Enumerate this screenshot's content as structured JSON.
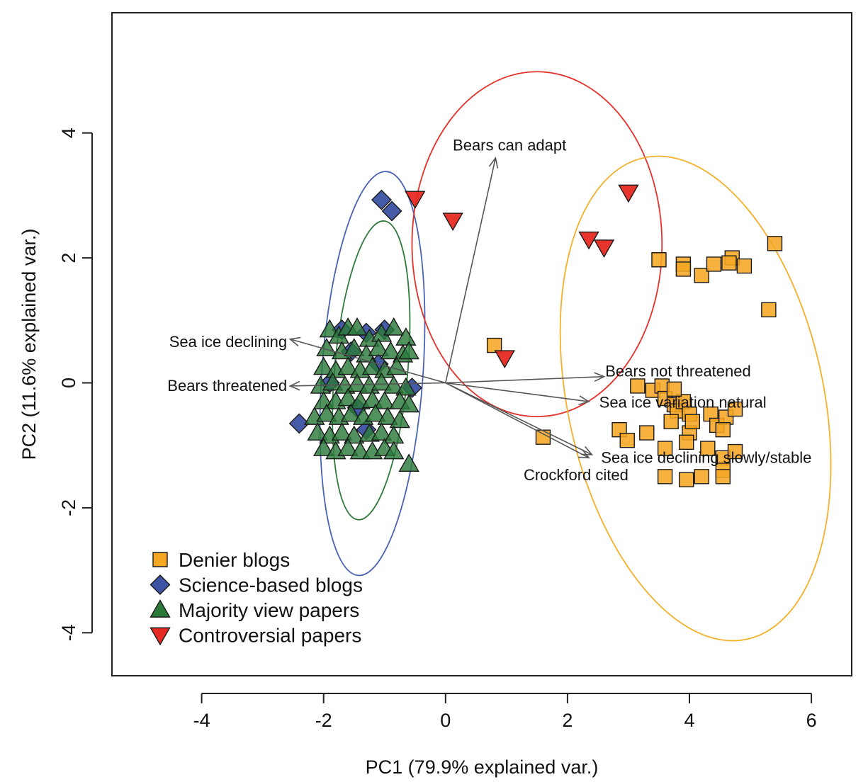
{
  "chart_data": {
    "type": "scatter",
    "subtype": "pca-biplot",
    "title": "",
    "xlabel": "PC1 (79.9% explained var.)",
    "ylabel": "PC2 (11.6% explained var.)",
    "xlim": [
      -5.4,
      6.6
    ],
    "ylim": [
      -4.7,
      5.9
    ],
    "xticks": [
      -4,
      -2,
      0,
      2,
      4,
      6
    ],
    "yticks": [
      -4,
      -2,
      0,
      2,
      4
    ],
    "legend_position": "bottom-left",
    "series": [
      {
        "name": "Denier blogs",
        "marker": "square",
        "color": "#f5a623",
        "points": [
          [
            0.8,
            0.6
          ],
          [
            1.6,
            -0.87
          ],
          [
            3.5,
            1.97
          ],
          [
            3.9,
            1.9
          ],
          [
            3.9,
            1.82
          ],
          [
            4.2,
            1.72
          ],
          [
            4.4,
            1.9
          ],
          [
            4.7,
            2.0
          ],
          [
            4.65,
            1.92
          ],
          [
            4.9,
            1.87
          ],
          [
            5.4,
            2.23
          ],
          [
            5.3,
            1.17
          ],
          [
            2.85,
            -0.75
          ],
          [
            2.98,
            -0.92
          ],
          [
            3.3,
            -0.8
          ],
          [
            3.15,
            -0.05
          ],
          [
            3.4,
            -0.12
          ],
          [
            3.55,
            -0.05
          ],
          [
            3.6,
            -0.25
          ],
          [
            3.75,
            -0.35
          ],
          [
            3.8,
            -0.45
          ],
          [
            3.7,
            -0.62
          ],
          [
            3.9,
            -0.3
          ],
          [
            4.0,
            -0.5
          ],
          [
            4.0,
            -0.8
          ],
          [
            4.05,
            -0.62
          ],
          [
            4.35,
            -0.5
          ],
          [
            4.45,
            -0.68
          ],
          [
            4.6,
            -0.55
          ],
          [
            4.75,
            -0.42
          ],
          [
            4.55,
            -0.75
          ],
          [
            3.95,
            -0.95
          ],
          [
            3.6,
            -1.05
          ],
          [
            4.3,
            -1.05
          ],
          [
            4.55,
            -1.2
          ],
          [
            4.75,
            -1.1
          ],
          [
            4.55,
            -1.4
          ],
          [
            4.55,
            -1.5
          ],
          [
            3.6,
            -1.5
          ],
          [
            3.95,
            -1.55
          ],
          [
            4.2,
            -1.5
          ],
          [
            3.75,
            -0.1
          ]
        ]
      },
      {
        "name": "Science-based blogs",
        "marker": "diamond",
        "color": "#3c52a3",
        "points": [
          [
            -1.05,
            2.93
          ],
          [
            -0.88,
            2.75
          ],
          [
            -0.55,
            -0.08
          ],
          [
            -2.4,
            -0.65
          ],
          [
            -1.7,
            0.85
          ],
          [
            -1.3,
            0.8
          ],
          [
            -1.55,
            0.5
          ],
          [
            -1.3,
            -0.75
          ],
          [
            -1.45,
            -0.4
          ],
          [
            -1.1,
            0.3
          ],
          [
            -1.9,
            0.0
          ],
          [
            -1.0,
            0.85
          ]
        ]
      },
      {
        "name": "Majority view papers",
        "marker": "triangle-up",
        "color": "#2b7a3a",
        "points": [
          [
            -1.9,
            0.85
          ],
          [
            -1.75,
            0.75
          ],
          [
            -1.6,
            0.88
          ],
          [
            -1.45,
            0.88
          ],
          [
            -1.25,
            0.7
          ],
          [
            -1.05,
            0.78
          ],
          [
            -0.85,
            0.88
          ],
          [
            -0.65,
            0.72
          ],
          [
            -1.95,
            0.55
          ],
          [
            -1.7,
            0.5
          ],
          [
            -1.5,
            0.55
          ],
          [
            -1.3,
            0.45
          ],
          [
            -1.1,
            0.55
          ],
          [
            -0.9,
            0.5
          ],
          [
            -0.7,
            0.45
          ],
          [
            -0.6,
            0.5
          ],
          [
            -2.0,
            0.25
          ],
          [
            -1.8,
            0.2
          ],
          [
            -1.6,
            0.25
          ],
          [
            -1.4,
            0.2
          ],
          [
            -1.2,
            0.25
          ],
          [
            -1.0,
            0.2
          ],
          [
            -0.8,
            0.25
          ],
          [
            -2.05,
            -0.05
          ],
          [
            -1.85,
            0.0
          ],
          [
            -1.65,
            -0.05
          ],
          [
            -1.45,
            -0.02
          ],
          [
            -1.25,
            -0.05
          ],
          [
            -1.05,
            0.0
          ],
          [
            -0.85,
            -0.05
          ],
          [
            -0.65,
            -0.08
          ],
          [
            -2.0,
            -0.3
          ],
          [
            -1.8,
            -0.3
          ],
          [
            -1.6,
            -0.25
          ],
          [
            -1.4,
            -0.3
          ],
          [
            -1.2,
            -0.28
          ],
          [
            -1.0,
            -0.3
          ],
          [
            -0.75,
            -0.3
          ],
          [
            -0.6,
            -0.35
          ],
          [
            -2.15,
            -0.55
          ],
          [
            -1.95,
            -0.5
          ],
          [
            -1.75,
            -0.55
          ],
          [
            -1.55,
            -0.5
          ],
          [
            -1.35,
            -0.55
          ],
          [
            -1.15,
            -0.5
          ],
          [
            -0.95,
            -0.55
          ],
          [
            -0.75,
            -0.6
          ],
          [
            -2.1,
            -0.8
          ],
          [
            -1.9,
            -0.85
          ],
          [
            -1.7,
            -0.8
          ],
          [
            -1.5,
            -0.85
          ],
          [
            -1.25,
            -0.82
          ],
          [
            -1.05,
            -0.8
          ],
          [
            -0.85,
            -0.85
          ],
          [
            -2.0,
            -1.05
          ],
          [
            -1.8,
            -1.1
          ],
          [
            -1.6,
            -1.05
          ],
          [
            -1.4,
            -1.1
          ],
          [
            -1.2,
            -1.1
          ],
          [
            -1.0,
            -1.05
          ],
          [
            -0.85,
            -1.1
          ],
          [
            -0.6,
            -1.3
          ]
        ]
      },
      {
        "name": "Controversial papers",
        "marker": "triangle-down",
        "color": "#e62a22",
        "points": [
          [
            -0.5,
            2.95
          ],
          [
            0.12,
            2.6
          ],
          [
            3.0,
            3.05
          ],
          [
            2.35,
            2.3
          ],
          [
            2.6,
            2.17
          ],
          [
            0.97,
            0.4
          ]
        ]
      }
    ],
    "ellipses": [
      {
        "group": "Science-based blogs",
        "color": "#4a62b5",
        "cx": -1.2,
        "cy": 0.15,
        "rx": 0.83,
        "ry": 3.24,
        "angle": 4
      },
      {
        "group": "Majority view papers",
        "color": "#2f7a3a",
        "cx": -1.22,
        "cy": 0.2,
        "rx": 0.6,
        "ry": 2.4,
        "angle": 5
      },
      {
        "group": "Controversial papers",
        "color": "#e6302a",
        "cx": 1.5,
        "cy": 2.22,
        "rx": 2.05,
        "ry": 2.76,
        "angle": 0
      },
      {
        "group": "Denier blogs",
        "color": "#f5b02a",
        "cx": 4.1,
        "cy": -0.25,
        "rx": 2.1,
        "ry": 3.94,
        "angle": -12
      }
    ],
    "loadings": [
      {
        "label": "Bears can adapt",
        "x": 0.82,
        "y": 3.6,
        "lx": 1.05,
        "ly": 3.8,
        "anchor": "middle"
      },
      {
        "label": "Sea ice declining",
        "x": -2.55,
        "y": 0.7,
        "lx": -2.6,
        "ly": 0.65,
        "anchor": "end"
      },
      {
        "label": "Bears threatened",
        "x": -2.55,
        "y": -0.05,
        "lx": -2.6,
        "ly": -0.05,
        "anchor": "end"
      },
      {
        "label": "Bears not threatened",
        "x": 2.6,
        "y": 0.1,
        "lx": 2.62,
        "ly": 0.18,
        "anchor": "start"
      },
      {
        "label": "Sea ice variation natural",
        "x": 2.35,
        "y": -0.3,
        "lx": 2.52,
        "ly": -0.32,
        "anchor": "start"
      },
      {
        "label": "Sea ice declining slowly/stable",
        "x": 2.4,
        "y": -1.15,
        "lx": 2.55,
        "ly": -1.2,
        "anchor": "start"
      },
      {
        "label": "Crockford cited",
        "x": 2.35,
        "y": -1.2,
        "lx": 1.28,
        "ly": -1.48,
        "anchor": "start"
      }
    ]
  }
}
